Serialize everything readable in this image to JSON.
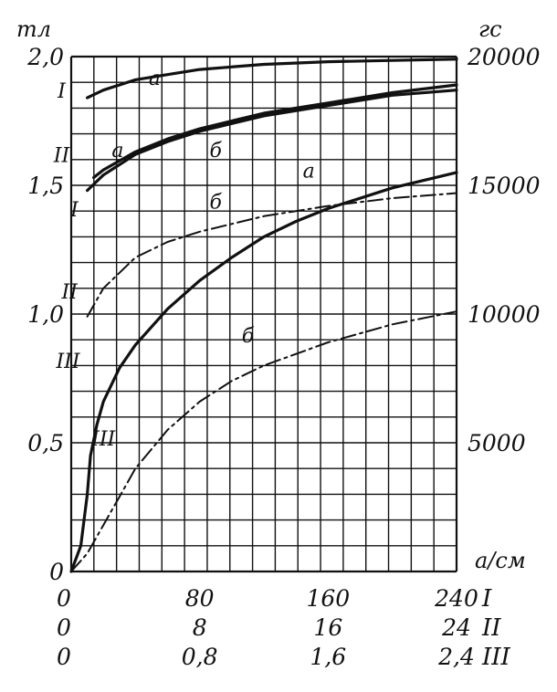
{
  "chart_data": {
    "type": "line",
    "title": "",
    "left_axis": {
      "unit": "тл",
      "ticks": [
        "0",
        "0,5",
        "1,0",
        "1,5",
        "2,0"
      ],
      "values": [
        0,
        0.5,
        1.0,
        1.5,
        2.0
      ],
      "range": [
        0,
        2.0
      ]
    },
    "right_axis": {
      "unit": "гс",
      "ticks": [
        "5000",
        "10000",
        "15000",
        "20000"
      ],
      "values": [
        5000,
        10000,
        15000,
        20000
      ],
      "range": [
        0,
        20000
      ]
    },
    "x_axis": {
      "unit": "а/см",
      "range": [
        0,
        240
      ],
      "scales": [
        {
          "name": "I",
          "ticks": [
            "0",
            "80",
            "160",
            "240"
          ]
        },
        {
          "name": "II",
          "ticks": [
            "0",
            "8",
            "16",
            "24"
          ]
        },
        {
          "name": "III",
          "ticks": [
            "0",
            "0,8",
            "1,6",
            "2,4"
          ]
        }
      ]
    },
    "grid": true,
    "series": [
      {
        "scale": "I",
        "curve": "а",
        "style": "solid",
        "x": [
          10,
          20,
          40,
          60,
          80,
          100,
          120,
          160,
          200,
          240
        ],
        "y": [
          1.84,
          1.87,
          1.91,
          1.93,
          1.95,
          1.96,
          1.97,
          1.98,
          1.985,
          1.99
        ]
      },
      {
        "scale": "I",
        "curve": "б",
        "style": "solid",
        "x": [
          10,
          20,
          40,
          60,
          80,
          100,
          120,
          160,
          200,
          240
        ],
        "y": [
          1.48,
          1.54,
          1.62,
          1.67,
          1.71,
          1.74,
          1.77,
          1.81,
          1.85,
          1.87
        ]
      },
      {
        "scale": "II",
        "curve": "а",
        "style": "solid",
        "x": [
          14,
          20,
          40,
          60,
          80,
          100,
          120,
          160,
          200,
          240
        ],
        "y": [
          1.53,
          1.56,
          1.63,
          1.68,
          1.72,
          1.75,
          1.78,
          1.82,
          1.86,
          1.89
        ]
      },
      {
        "scale": "II",
        "curve": "б",
        "style": "dash-dot",
        "x": [
          10,
          20,
          40,
          60,
          80,
          100,
          120,
          160,
          200,
          240
        ],
        "y": [
          0.99,
          1.1,
          1.22,
          1.28,
          1.32,
          1.35,
          1.38,
          1.42,
          1.45,
          1.47
        ]
      },
      {
        "scale": "III",
        "curve": "а",
        "style": "solid",
        "x": [
          0,
          6,
          10,
          12,
          16,
          20,
          30,
          40,
          60,
          80,
          100,
          120,
          140,
          160,
          200,
          240
        ],
        "y": [
          0,
          0.1,
          0.3,
          0.45,
          0.57,
          0.66,
          0.79,
          0.88,
          1.02,
          1.13,
          1.22,
          1.3,
          1.36,
          1.41,
          1.49,
          1.55
        ]
      },
      {
        "scale": "III",
        "curve": "б",
        "style": "dash-dot",
        "x": [
          0,
          10,
          20,
          30,
          40,
          60,
          80,
          100,
          120,
          160,
          200,
          240
        ],
        "y": [
          0,
          0.07,
          0.18,
          0.29,
          0.4,
          0.55,
          0.66,
          0.74,
          0.8,
          0.89,
          0.96,
          1.01
        ]
      }
    ],
    "annotations": [
      {
        "text": "а",
        "x": 52,
        "y": 1.89
      },
      {
        "text": "а",
        "x": 29,
        "y": 1.61
      },
      {
        "text": "б",
        "x": 90,
        "y": 1.61
      },
      {
        "text": "б",
        "x": 90,
        "y": 1.41
      },
      {
        "text": "а",
        "x": 148,
        "y": 1.53
      },
      {
        "text": "б",
        "x": 110,
        "y": 0.89
      },
      {
        "text": "I",
        "x": -6,
        "y": 1.84
      },
      {
        "text": "II",
        "x": -6,
        "y": 1.59
      },
      {
        "text": "I",
        "x": 2,
        "y": 1.38
      },
      {
        "text": "II",
        "x": -1,
        "y": 1.06
      },
      {
        "text": "III",
        "x": -2,
        "y": 0.79
      },
      {
        "text": "III",
        "x": 20,
        "y": 0.49
      }
    ]
  }
}
